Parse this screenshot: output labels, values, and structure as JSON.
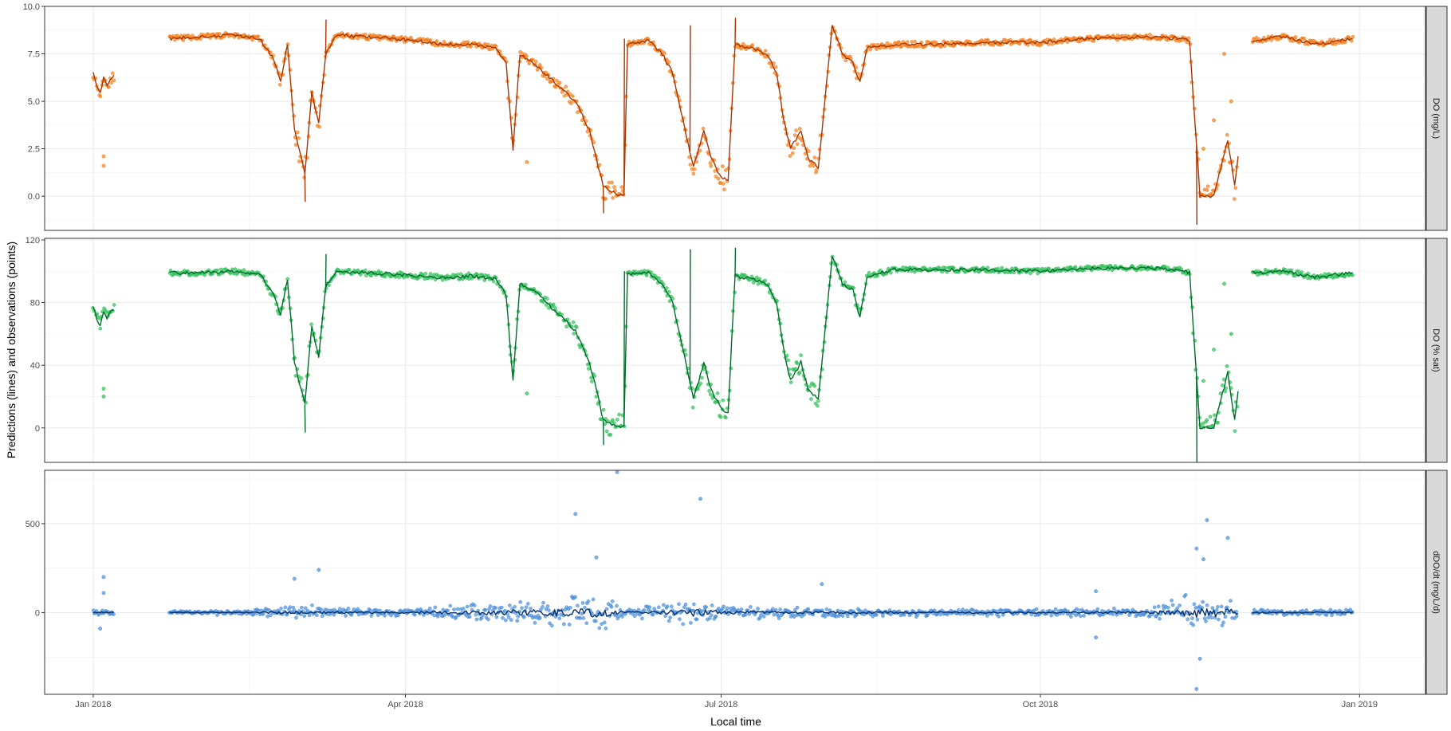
{
  "chart_data": {
    "type": "line",
    "xlabel": "Local time",
    "ylabel": "Predictions (lines) and observations (points)",
    "x_ticks": [
      "Jan 2018",
      "Apr 2018",
      "Jul 2018",
      "Oct 2018",
      "Jan 2019"
    ],
    "xlim": [
      "2017-12-18",
      "2019-01-20"
    ],
    "grid": true,
    "legend": "none",
    "panels": [
      {
        "strip": "DO (mg/L)",
        "ylim": [
          -1.8,
          10
        ],
        "y_ticks": [
          "0.0",
          "2.5",
          "5.0",
          "7.5",
          "10.0"
        ],
        "y_tick_values": [
          0,
          2.5,
          5,
          7.5,
          10
        ],
        "point_color": "#f77f1c",
        "line_color": "#a63603",
        "gaps": [
          [
            "2018-01-07",
            "2018-01-23"
          ],
          [
            "2018-11-27",
            "2018-12-01"
          ]
        ],
        "anchors": [
          [
            "2018-01-01",
            6.5
          ],
          [
            "2018-01-02",
            5.8
          ],
          [
            "2018-01-03",
            5.4
          ],
          [
            "2018-01-04",
            6.3
          ],
          [
            "2018-01-05",
            5.8
          ],
          [
            "2018-01-06",
            6.2
          ],
          [
            "2018-01-23",
            8.3
          ],
          [
            "2018-02-01",
            8.4
          ],
          [
            "2018-02-10",
            8.5
          ],
          [
            "2018-02-18",
            8.3
          ],
          [
            "2018-02-22",
            7.2
          ],
          [
            "2018-02-24",
            6.0
          ],
          [
            "2018-02-26",
            8.0
          ],
          [
            "2018-02-28",
            3.5
          ],
          [
            "2018-03-03",
            1.2
          ],
          [
            "2018-03-05",
            5.5
          ],
          [
            "2018-03-07",
            3.8
          ],
          [
            "2018-03-09",
            7.5
          ],
          [
            "2018-03-12",
            8.5
          ],
          [
            "2018-03-20",
            8.4
          ],
          [
            "2018-03-28",
            8.3
          ],
          [
            "2018-04-05",
            8.2
          ],
          [
            "2018-04-12",
            8.0
          ],
          [
            "2018-04-20",
            8.0
          ],
          [
            "2018-04-27",
            7.8
          ],
          [
            "2018-04-30",
            7.0
          ],
          [
            "2018-05-02",
            2.5
          ],
          [
            "2018-05-04",
            7.5
          ],
          [
            "2018-05-08",
            7.0
          ],
          [
            "2018-05-14",
            6.0
          ],
          [
            "2018-05-20",
            5.0
          ],
          [
            "2018-05-24",
            3.5
          ],
          [
            "2018-05-26",
            2.0
          ],
          [
            "2018-05-28",
            0.5
          ],
          [
            "2018-06-01",
            0.1
          ],
          [
            "2018-06-03",
            0.1
          ],
          [
            "2018-06-04",
            8.0
          ],
          [
            "2018-06-10",
            8.2
          ],
          [
            "2018-06-14",
            7.5
          ],
          [
            "2018-06-17",
            6.5
          ],
          [
            "2018-06-20",
            4.0
          ],
          [
            "2018-06-23",
            1.5
          ],
          [
            "2018-06-26",
            3.5
          ],
          [
            "2018-06-28",
            2.0
          ],
          [
            "2018-07-01",
            1.0
          ],
          [
            "2018-07-03",
            0.8
          ],
          [
            "2018-07-05",
            8.0
          ],
          [
            "2018-07-10",
            7.8
          ],
          [
            "2018-07-14",
            7.5
          ],
          [
            "2018-07-17",
            6.5
          ],
          [
            "2018-07-19",
            4.0
          ],
          [
            "2018-07-21",
            2.5
          ],
          [
            "2018-07-24",
            3.5
          ],
          [
            "2018-07-26",
            2.0
          ],
          [
            "2018-07-29",
            1.5
          ],
          [
            "2018-08-02",
            9.0
          ],
          [
            "2018-08-05",
            7.5
          ],
          [
            "2018-08-08",
            7.0
          ],
          [
            "2018-08-10",
            6.0
          ],
          [
            "2018-08-12",
            7.8
          ],
          [
            "2018-08-20",
            8.0
          ],
          [
            "2018-09-01",
            8.0
          ],
          [
            "2018-09-15",
            8.1
          ],
          [
            "2018-10-01",
            8.1
          ],
          [
            "2018-10-15",
            8.3
          ],
          [
            "2018-11-01",
            8.4
          ],
          [
            "2018-11-10",
            8.3
          ],
          [
            "2018-11-13",
            8.2
          ],
          [
            "2018-11-16",
            0.0
          ],
          [
            "2018-11-20",
            0.0
          ],
          [
            "2018-11-24",
            3.0
          ],
          [
            "2018-11-26",
            0.5
          ],
          [
            "2018-12-01",
            8.2
          ],
          [
            "2018-12-10",
            8.4
          ],
          [
            "2018-12-20",
            8.0
          ],
          [
            "2018-12-30",
            8.3
          ]
        ],
        "spikes": [
          [
            "2018-03-03",
            -0.3
          ],
          [
            "2018-03-09",
            9.3
          ],
          [
            "2018-05-28",
            -0.9
          ],
          [
            "2018-06-03",
            8.3
          ],
          [
            "2018-06-22",
            9.0
          ],
          [
            "2018-07-05",
            9.4
          ],
          [
            "2018-11-15",
            -1.5
          ]
        ],
        "outliers": [
          [
            "2018-01-04",
            1.6
          ],
          [
            "2018-01-04",
            2.1
          ],
          [
            "2018-05-06",
            1.8
          ],
          [
            "2018-11-17",
            2.5
          ],
          [
            "2018-11-20",
            4.0
          ],
          [
            "2018-11-23",
            7.5
          ],
          [
            "2018-11-25",
            5.0
          ]
        ]
      },
      {
        "strip": "DO (% sat)",
        "ylim": [
          -22,
          121
        ],
        "y_ticks": [
          "0",
          "40",
          "80",
          "120"
        ],
        "y_tick_values": [
          0,
          40,
          80,
          120
        ],
        "point_color": "#31c15a",
        "line_color": "#006d2c",
        "gaps": [
          [
            "2018-01-07",
            "2018-01-23"
          ],
          [
            "2018-11-27",
            "2018-12-01"
          ]
        ],
        "anchors": [
          [
            "2018-01-01",
            77
          ],
          [
            "2018-01-02",
            70
          ],
          [
            "2018-01-03",
            65
          ],
          [
            "2018-01-04",
            75
          ],
          [
            "2018-01-05",
            70
          ],
          [
            "2018-01-06",
            74
          ],
          [
            "2018-01-23",
            99
          ],
          [
            "2018-02-01",
            99
          ],
          [
            "2018-02-10",
            100
          ],
          [
            "2018-02-18",
            98
          ],
          [
            "2018-02-22",
            85
          ],
          [
            "2018-02-24",
            72
          ],
          [
            "2018-02-26",
            95
          ],
          [
            "2018-02-28",
            42
          ],
          [
            "2018-03-03",
            15
          ],
          [
            "2018-03-05",
            65
          ],
          [
            "2018-03-07",
            45
          ],
          [
            "2018-03-09",
            90
          ],
          [
            "2018-03-12",
            100
          ],
          [
            "2018-03-20",
            99
          ],
          [
            "2018-03-28",
            98
          ],
          [
            "2018-04-05",
            97
          ],
          [
            "2018-04-12",
            96
          ],
          [
            "2018-04-20",
            97
          ],
          [
            "2018-04-27",
            95
          ],
          [
            "2018-04-30",
            85
          ],
          [
            "2018-05-02",
            30
          ],
          [
            "2018-05-04",
            92
          ],
          [
            "2018-05-08",
            88
          ],
          [
            "2018-05-14",
            75
          ],
          [
            "2018-05-20",
            62
          ],
          [
            "2018-05-24",
            42
          ],
          [
            "2018-05-26",
            25
          ],
          [
            "2018-05-28",
            5
          ],
          [
            "2018-06-01",
            1
          ],
          [
            "2018-06-03",
            1
          ],
          [
            "2018-06-04",
            98
          ],
          [
            "2018-06-10",
            99
          ],
          [
            "2018-06-14",
            92
          ],
          [
            "2018-06-17",
            80
          ],
          [
            "2018-06-20",
            50
          ],
          [
            "2018-06-23",
            18
          ],
          [
            "2018-06-26",
            42
          ],
          [
            "2018-06-28",
            25
          ],
          [
            "2018-07-01",
            12
          ],
          [
            "2018-07-03",
            10
          ],
          [
            "2018-07-05",
            97
          ],
          [
            "2018-07-10",
            95
          ],
          [
            "2018-07-14",
            92
          ],
          [
            "2018-07-17",
            80
          ],
          [
            "2018-07-19",
            50
          ],
          [
            "2018-07-21",
            30
          ],
          [
            "2018-07-24",
            42
          ],
          [
            "2018-07-26",
            25
          ],
          [
            "2018-07-29",
            18
          ],
          [
            "2018-08-02",
            110
          ],
          [
            "2018-08-05",
            92
          ],
          [
            "2018-08-08",
            88
          ],
          [
            "2018-08-10",
            70
          ],
          [
            "2018-08-12",
            97
          ],
          [
            "2018-08-20",
            101
          ],
          [
            "2018-09-01",
            101
          ],
          [
            "2018-09-15",
            101
          ],
          [
            "2018-10-01",
            100
          ],
          [
            "2018-10-15",
            102
          ],
          [
            "2018-11-01",
            102
          ],
          [
            "2018-11-10",
            101
          ],
          [
            "2018-11-13",
            99
          ],
          [
            "2018-11-16",
            0
          ],
          [
            "2018-11-20",
            0
          ],
          [
            "2018-11-24",
            35
          ],
          [
            "2018-11-26",
            5
          ],
          [
            "2018-12-01",
            99
          ],
          [
            "2018-12-10",
            100
          ],
          [
            "2018-12-20",
            96
          ],
          [
            "2018-12-30",
            99
          ]
        ],
        "spikes": [
          [
            "2018-03-03",
            -3
          ],
          [
            "2018-03-09",
            111
          ],
          [
            "2018-05-28",
            -11
          ],
          [
            "2018-06-03",
            100
          ],
          [
            "2018-06-22",
            114
          ],
          [
            "2018-07-05",
            115
          ],
          [
            "2018-11-15",
            -22
          ]
        ],
        "outliers": [
          [
            "2018-01-04",
            20
          ],
          [
            "2018-01-04",
            25
          ],
          [
            "2018-05-06",
            22
          ],
          [
            "2018-11-17",
            30
          ],
          [
            "2018-11-20",
            50
          ],
          [
            "2018-11-23",
            92
          ],
          [
            "2018-11-25",
            60
          ]
        ]
      },
      {
        "strip": "dDO/dt (mg/L/d)",
        "ylim": [
          -460,
          800
        ],
        "y_ticks": [
          "0",
          "500"
        ],
        "y_tick_values": [
          0,
          500
        ],
        "point_color": "#4a8fdc",
        "line_color": "#08306b",
        "gaps": [
          [
            "2018-01-07",
            "2018-01-23"
          ],
          [
            "2018-11-27",
            "2018-12-01"
          ]
        ],
        "anchors": [
          [
            "2018-01-01",
            20
          ],
          [
            "2018-01-06",
            15
          ],
          [
            "2018-01-23",
            10
          ],
          [
            "2018-02-15",
            15
          ],
          [
            "2018-03-01",
            40
          ],
          [
            "2018-03-15",
            20
          ],
          [
            "2018-04-01",
            20
          ],
          [
            "2018-04-15",
            40
          ],
          [
            "2018-05-01",
            60
          ],
          [
            "2018-05-15",
            80
          ],
          [
            "2018-05-28",
            110
          ],
          [
            "2018-06-03",
            30
          ],
          [
            "2018-06-15",
            40
          ],
          [
            "2018-06-22",
            90
          ],
          [
            "2018-07-01",
            40
          ],
          [
            "2018-07-15",
            30
          ],
          [
            "2018-08-01",
            25
          ],
          [
            "2018-09-01",
            20
          ],
          [
            "2018-10-01",
            20
          ],
          [
            "2018-11-01",
            25
          ],
          [
            "2018-11-15",
            110
          ],
          [
            "2018-11-22",
            90
          ],
          [
            "2018-11-26",
            80
          ],
          [
            "2018-12-01",
            15
          ],
          [
            "2018-12-30",
            15
          ]
        ],
        "outliers": [
          [
            "2018-01-04",
            200
          ],
          [
            "2018-01-04",
            110
          ],
          [
            "2018-01-03",
            -90
          ],
          [
            "2018-02-28",
            190
          ],
          [
            "2018-03-07",
            240
          ],
          [
            "2018-05-20",
            555
          ],
          [
            "2018-05-26",
            310
          ],
          [
            "2018-06-01",
            790
          ],
          [
            "2018-06-25",
            640
          ],
          [
            "2018-07-30",
            160
          ],
          [
            "2018-10-17",
            120
          ],
          [
            "2018-10-17",
            -140
          ],
          [
            "2018-11-15",
            360
          ],
          [
            "2018-11-15",
            -430
          ],
          [
            "2018-11-16",
            -260
          ],
          [
            "2018-11-18",
            520
          ],
          [
            "2018-11-24",
            420
          ],
          [
            "2018-11-17",
            300
          ]
        ]
      }
    ]
  }
}
